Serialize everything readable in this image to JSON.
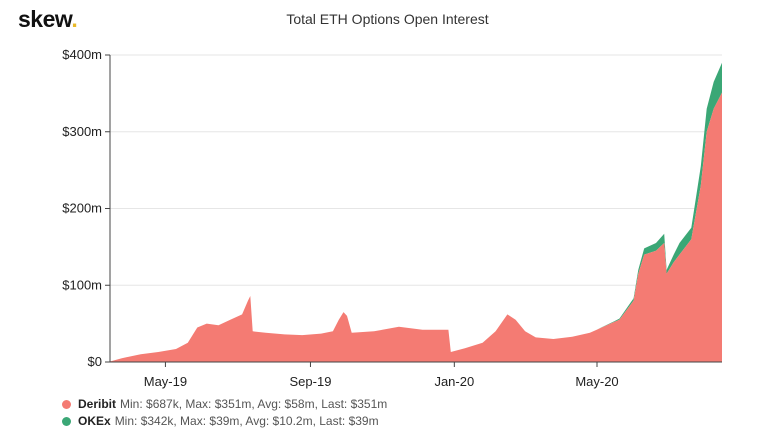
{
  "brand": {
    "name": "skew",
    "dot": "."
  },
  "chart_data": {
    "type": "area",
    "stacked": true,
    "title": "Total ETH Options Open Interest",
    "xlabel": "",
    "ylabel": "",
    "x_range": [
      "2019-03-15",
      "2020-08-15"
    ],
    "ylim": [
      0,
      400
    ],
    "y_ticks": [
      0,
      100,
      200,
      300,
      400
    ],
    "y_tick_labels": [
      "$0",
      "$100m",
      "$200m",
      "$300m",
      "$400m"
    ],
    "x_ticks": [
      "2019-05-01",
      "2019-09-01",
      "2020-01-01",
      "2020-05-01"
    ],
    "x_tick_labels": [
      "May-19",
      "Sep-19",
      "Jan-20",
      "May-20"
    ],
    "grid": true,
    "legend_position": "bottom-left",
    "series": [
      {
        "name": "Deribit",
        "color": "#f47b73",
        "summary": "Min: $687k, Max: $351m, Avg: $58m, Last: $351m",
        "points": [
          [
            "2019-03-15",
            0.7
          ],
          [
            "2019-03-25",
            5
          ],
          [
            "2019-04-10",
            10
          ],
          [
            "2019-04-25",
            13
          ],
          [
            "2019-05-10",
            17
          ],
          [
            "2019-05-20",
            25
          ],
          [
            "2019-05-28",
            45
          ],
          [
            "2019-06-05",
            50
          ],
          [
            "2019-06-15",
            48
          ],
          [
            "2019-06-25",
            55
          ],
          [
            "2019-07-05",
            62
          ],
          [
            "2019-07-10",
            80
          ],
          [
            "2019-07-12",
            86
          ],
          [
            "2019-07-14",
            40
          ],
          [
            "2019-07-25",
            38
          ],
          [
            "2019-08-10",
            36
          ],
          [
            "2019-08-25",
            35
          ],
          [
            "2019-09-10",
            37
          ],
          [
            "2019-09-20",
            40
          ],
          [
            "2019-09-25",
            55
          ],
          [
            "2019-09-29",
            65
          ],
          [
            "2019-10-02",
            60
          ],
          [
            "2019-10-06",
            38
          ],
          [
            "2019-10-25",
            40
          ],
          [
            "2019-11-15",
            46
          ],
          [
            "2019-12-05",
            42
          ],
          [
            "2019-12-27",
            42
          ],
          [
            "2019-12-29",
            13
          ],
          [
            "2020-01-10",
            18
          ],
          [
            "2020-01-25",
            25
          ],
          [
            "2020-02-05",
            40
          ],
          [
            "2020-02-15",
            62
          ],
          [
            "2020-02-22",
            55
          ],
          [
            "2020-03-01",
            40
          ],
          [
            "2020-03-10",
            32
          ],
          [
            "2020-03-25",
            30
          ],
          [
            "2020-04-10",
            33
          ],
          [
            "2020-04-25",
            38
          ],
          [
            "2020-05-05",
            45
          ],
          [
            "2020-05-20",
            55
          ],
          [
            "2020-06-01",
            80
          ],
          [
            "2020-06-05",
            115
          ],
          [
            "2020-06-10",
            140
          ],
          [
            "2020-06-20",
            145
          ],
          [
            "2020-06-27",
            155
          ],
          [
            "2020-06-29",
            115
          ],
          [
            "2020-07-05",
            130
          ],
          [
            "2020-07-10",
            140
          ],
          [
            "2020-07-20",
            160
          ],
          [
            "2020-07-28",
            230
          ],
          [
            "2020-08-02",
            300
          ],
          [
            "2020-08-08",
            330
          ],
          [
            "2020-08-15",
            351
          ]
        ]
      },
      {
        "name": "OKEx",
        "color": "#3ba776",
        "summary": "Min: $342k, Max: $39m, Avg: $10.2m, Last: $39m",
        "points": [
          [
            "2019-03-15",
            0
          ],
          [
            "2020-05-01",
            0
          ],
          [
            "2020-05-15",
            1
          ],
          [
            "2020-06-01",
            3
          ],
          [
            "2020-06-10",
            8
          ],
          [
            "2020-06-20",
            10
          ],
          [
            "2020-06-27",
            12
          ],
          [
            "2020-06-29",
            5
          ],
          [
            "2020-07-05",
            10
          ],
          [
            "2020-07-10",
            15
          ],
          [
            "2020-07-20",
            15
          ],
          [
            "2020-07-28",
            25
          ],
          [
            "2020-08-02",
            30
          ],
          [
            "2020-08-08",
            35
          ],
          [
            "2020-08-15",
            39
          ]
        ]
      }
    ]
  }
}
